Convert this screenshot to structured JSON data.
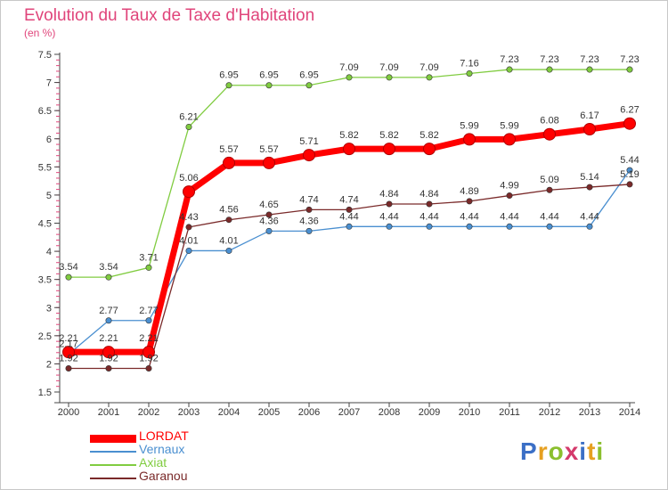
{
  "title": "Evolution du Taux de Taxe d'Habitation",
  "unit_label": "(en %)",
  "logo": {
    "text": "Proxiti",
    "colors": [
      "#3b6fc6",
      "#e6a021",
      "#8bbf2e",
      "#d43a6b",
      "#3b6fc6",
      "#e6a021",
      "#8bbf2e"
    ]
  },
  "chart_data": {
    "type": "line",
    "x": [
      "2000",
      "2001",
      "2002",
      "2003",
      "2004",
      "2005",
      "2006",
      "2007",
      "2008",
      "2009",
      "2010",
      "2011",
      "2012",
      "2013",
      "2014"
    ],
    "ylim": [
      1.5,
      7.5
    ],
    "yticks": [
      "1.5",
      "2",
      "2.5",
      "3",
      "3.5",
      "4",
      "4.5",
      "5",
      "5.5",
      "6",
      "6.5",
      "7",
      "7.5"
    ],
    "grid": false,
    "legend_position": "bottom-left",
    "series": [
      {
        "name": "LORDAT",
        "color": "#ff0000",
        "emphasis": true,
        "values": [
          2.21,
          2.21,
          2.21,
          5.06,
          5.57,
          5.57,
          5.71,
          5.82,
          5.82,
          5.82,
          5.99,
          5.99,
          6.08,
          6.17,
          6.27
        ],
        "labels": [
          "2.21",
          "2.21",
          "2.21",
          "5.06",
          "5.57",
          "5.57",
          "5.71",
          "5.82",
          "5.82",
          "5.82",
          "5.99",
          "5.99",
          "6.08",
          "6.17",
          "6.27"
        ]
      },
      {
        "name": "Vernaux",
        "color": "#4a8fd0",
        "values": [
          2.17,
          2.77,
          2.77,
          4.01,
          4.01,
          4.36,
          4.36,
          4.44,
          4.44,
          4.44,
          4.44,
          4.44,
          4.44,
          4.44,
          5.44
        ],
        "labels": [
          "2.17",
          "2.77",
          "2.77",
          "4.01",
          "4.01",
          "4.36",
          "4.36",
          "4.44",
          "4.44",
          "4.44",
          "4.44",
          "4.44",
          "4.44",
          "4.44",
          "5.44"
        ]
      },
      {
        "name": "Axiat",
        "color": "#80cc40",
        "values": [
          3.54,
          3.54,
          3.71,
          6.21,
          6.95,
          6.95,
          6.95,
          7.09,
          7.09,
          7.09,
          7.16,
          7.23,
          7.23,
          7.23,
          7.23
        ],
        "labels": [
          "3.54",
          "3.54",
          "3.71",
          "6.21",
          "6.95",
          "6.95",
          "6.95",
          "7.09",
          "7.09",
          "7.09",
          "7.16",
          "7.23",
          "7.23",
          "7.23",
          "7.23"
        ]
      },
      {
        "name": "Garanou",
        "color": "#7a2a2a",
        "values": [
          1.92,
          1.92,
          1.92,
          4.43,
          4.56,
          4.65,
          4.74,
          4.74,
          4.84,
          4.84,
          4.89,
          4.99,
          5.09,
          5.14,
          5.19
        ],
        "labels": [
          "1.92",
          "1.92",
          "1.92",
          "4.43",
          "4.56",
          "4.65",
          "4.74",
          "4.74",
          "4.84",
          "4.84",
          "4.89",
          "4.99",
          "5.09",
          "5.14",
          "5.19"
        ]
      }
    ]
  }
}
